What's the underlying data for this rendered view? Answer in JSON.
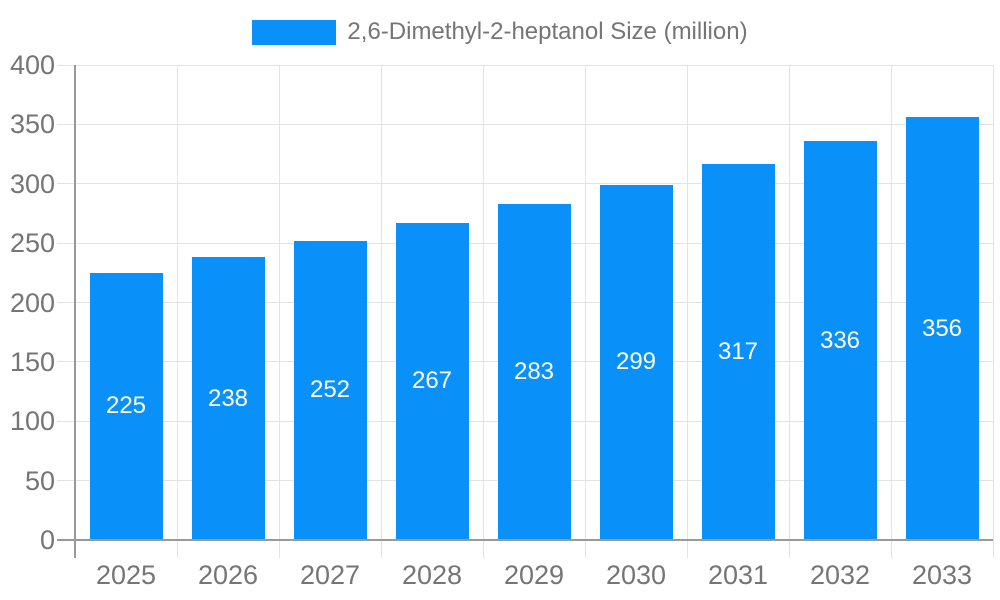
{
  "chart_data": {
    "type": "bar",
    "title": "2,6-Dimethyl-2-heptanol Size (million)",
    "series": [
      {
        "name": "2,6-Dimethyl-2-heptanol Size (million)",
        "values": [
          225,
          238,
          252,
          267,
          283,
          299,
          317,
          336,
          356
        ]
      }
    ],
    "categories": [
      "2025",
      "2026",
      "2027",
      "2028",
      "2029",
      "2030",
      "2031",
      "2032",
      "2033"
    ],
    "yticks": [
      0,
      50,
      100,
      150,
      200,
      250,
      300,
      350,
      400
    ],
    "ylim": [
      0,
      400
    ],
    "xlabel": "",
    "ylabel": "",
    "grid": true,
    "legend_position": "top",
    "bar_value_labels": "inside-center",
    "colors": {
      "bar": "#0991F9",
      "bar_label": "#FFFFFF",
      "axis_text": "#757575",
      "legend_text": "#757575",
      "grid_line": "#E3E3E3",
      "axis_line": "#999999",
      "background": "#FFFFFF"
    }
  }
}
